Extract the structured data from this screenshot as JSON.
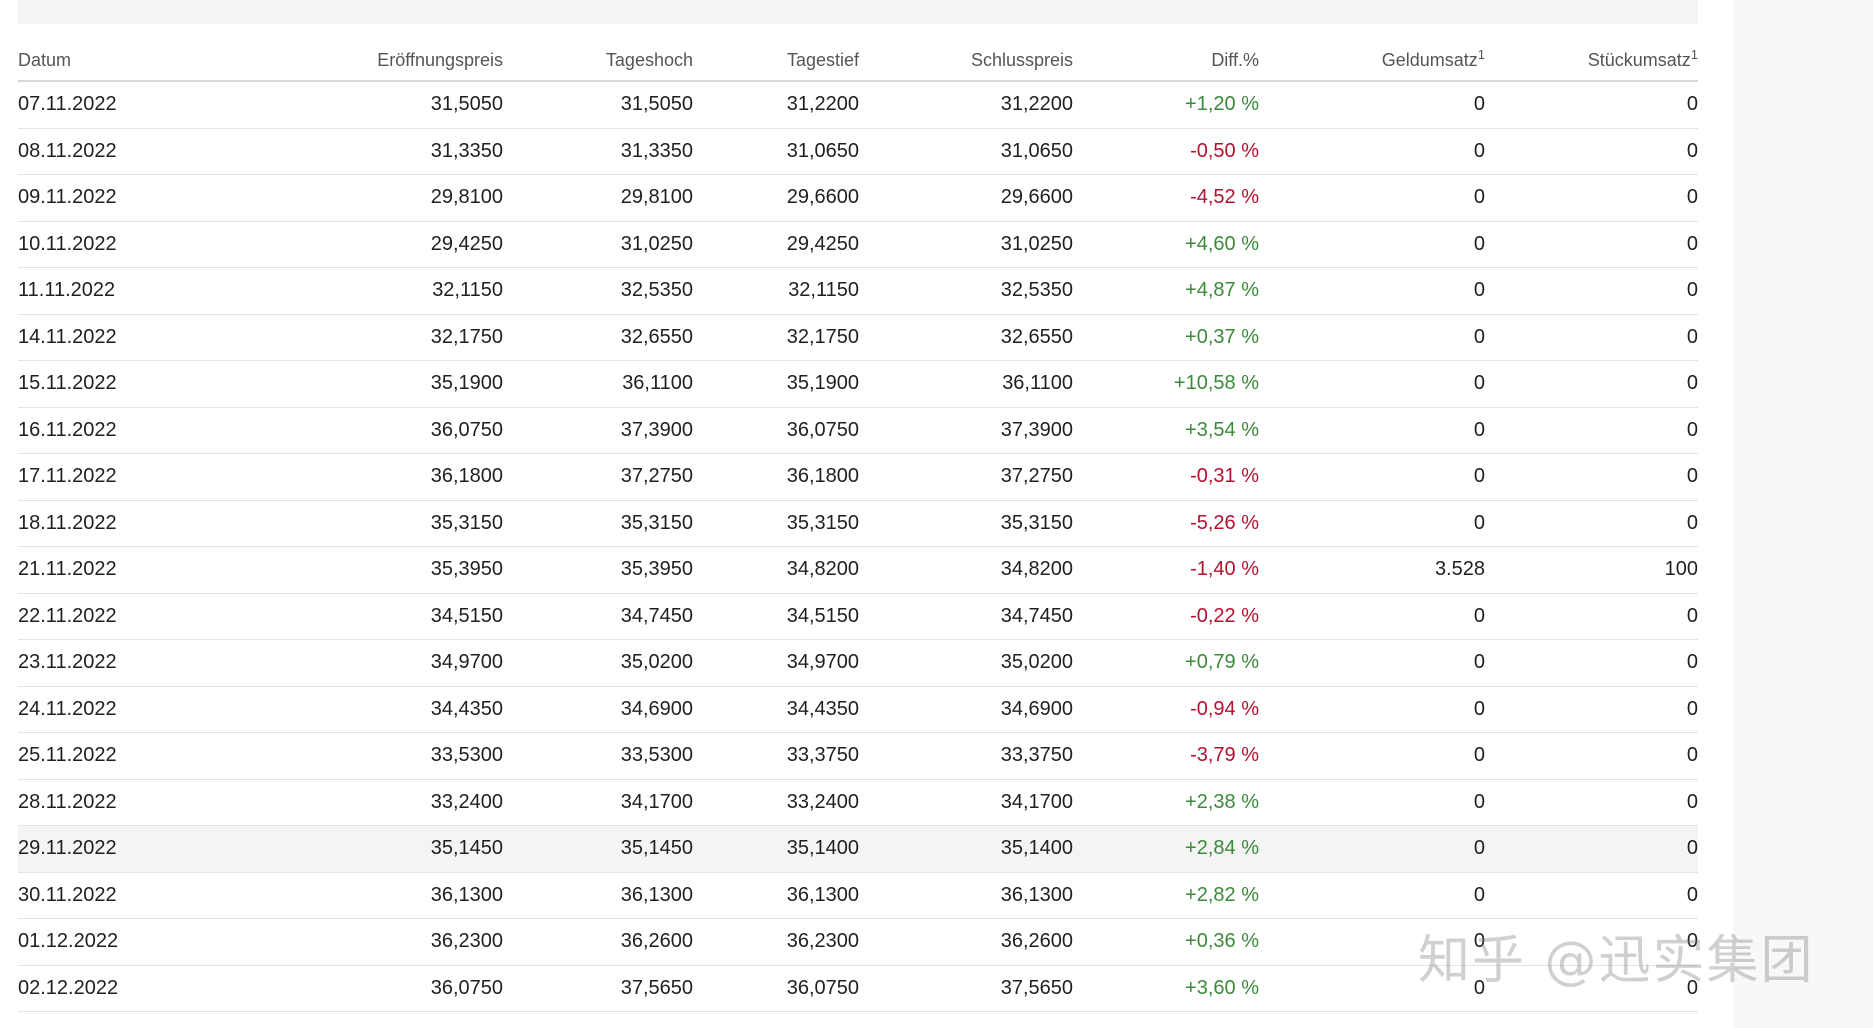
{
  "table": {
    "headers": [
      {
        "label": "Datum",
        "sup": ""
      },
      {
        "label": "Eröffnungspreis",
        "sup": ""
      },
      {
        "label": "Tageshoch",
        "sup": ""
      },
      {
        "label": "Tagestief",
        "sup": ""
      },
      {
        "label": "Schlusspreis",
        "sup": ""
      },
      {
        "label": "Diff.%",
        "sup": ""
      },
      {
        "label": "Geldumsatz",
        "sup": "1"
      },
      {
        "label": "Stückumsatz",
        "sup": "1"
      }
    ],
    "rows": [
      {
        "datum": "07.11.2022",
        "open": "31,5050",
        "high": "31,5050",
        "low": "31,2200",
        "close": "31,2200",
        "diff": "+1,20 %",
        "trend": "pos",
        "geld": "0",
        "stueck": "0"
      },
      {
        "datum": "08.11.2022",
        "open": "31,3350",
        "high": "31,3350",
        "low": "31,0650",
        "close": "31,0650",
        "diff": "-0,50 %",
        "trend": "neg",
        "geld": "0",
        "stueck": "0"
      },
      {
        "datum": "09.11.2022",
        "open": "29,8100",
        "high": "29,8100",
        "low": "29,6600",
        "close": "29,6600",
        "diff": "-4,52 %",
        "trend": "neg",
        "geld": "0",
        "stueck": "0"
      },
      {
        "datum": "10.11.2022",
        "open": "29,4250",
        "high": "31,0250",
        "low": "29,4250",
        "close": "31,0250",
        "diff": "+4,60 %",
        "trend": "pos",
        "geld": "0",
        "stueck": "0"
      },
      {
        "datum": "11.11.2022",
        "open": "32,1150",
        "high": "32,5350",
        "low": "32,1150",
        "close": "32,5350",
        "diff": "+4,87 %",
        "trend": "pos",
        "geld": "0",
        "stueck": "0"
      },
      {
        "datum": "14.11.2022",
        "open": "32,1750",
        "high": "32,6550",
        "low": "32,1750",
        "close": "32,6550",
        "diff": "+0,37 %",
        "trend": "pos",
        "geld": "0",
        "stueck": "0"
      },
      {
        "datum": "15.11.2022",
        "open": "35,1900",
        "high": "36,1100",
        "low": "35,1900",
        "close": "36,1100",
        "diff": "+10,58 %",
        "trend": "pos",
        "geld": "0",
        "stueck": "0"
      },
      {
        "datum": "16.11.2022",
        "open": "36,0750",
        "high": "37,3900",
        "low": "36,0750",
        "close": "37,3900",
        "diff": "+3,54 %",
        "trend": "pos",
        "geld": "0",
        "stueck": "0"
      },
      {
        "datum": "17.11.2022",
        "open": "36,1800",
        "high": "37,2750",
        "low": "36,1800",
        "close": "37,2750",
        "diff": "-0,31 %",
        "trend": "neg",
        "geld": "0",
        "stueck": "0"
      },
      {
        "datum": "18.11.2022",
        "open": "35,3150",
        "high": "35,3150",
        "low": "35,3150",
        "close": "35,3150",
        "diff": "-5,26 %",
        "trend": "neg",
        "geld": "0",
        "stueck": "0"
      },
      {
        "datum": "21.11.2022",
        "open": "35,3950",
        "high": "35,3950",
        "low": "34,8200",
        "close": "34,8200",
        "diff": "-1,40 %",
        "trend": "neg",
        "geld": "3.528",
        "stueck": "100"
      },
      {
        "datum": "22.11.2022",
        "open": "34,5150",
        "high": "34,7450",
        "low": "34,5150",
        "close": "34,7450",
        "diff": "-0,22 %",
        "trend": "neg",
        "geld": "0",
        "stueck": "0"
      },
      {
        "datum": "23.11.2022",
        "open": "34,9700",
        "high": "35,0200",
        "low": "34,9700",
        "close": "35,0200",
        "diff": "+0,79 %",
        "trend": "pos",
        "geld": "0",
        "stueck": "0"
      },
      {
        "datum": "24.11.2022",
        "open": "34,4350",
        "high": "34,6900",
        "low": "34,4350",
        "close": "34,6900",
        "diff": "-0,94 %",
        "trend": "neg",
        "geld": "0",
        "stueck": "0"
      },
      {
        "datum": "25.11.2022",
        "open": "33,5300",
        "high": "33,5300",
        "low": "33,3750",
        "close": "33,3750",
        "diff": "-3,79 %",
        "trend": "neg",
        "geld": "0",
        "stueck": "0"
      },
      {
        "datum": "28.11.2022",
        "open": "33,2400",
        "high": "34,1700",
        "low": "33,2400",
        "close": "34,1700",
        "diff": "+2,38 %",
        "trend": "pos",
        "geld": "0",
        "stueck": "0"
      },
      {
        "datum": "29.11.2022",
        "open": "35,1450",
        "high": "35,1450",
        "low": "35,1400",
        "close": "35,1400",
        "diff": "+2,84 %",
        "trend": "pos",
        "geld": "0",
        "stueck": "0",
        "highlight": true
      },
      {
        "datum": "30.11.2022",
        "open": "36,1300",
        "high": "36,1300",
        "low": "36,1300",
        "close": "36,1300",
        "diff": "+2,82 %",
        "trend": "pos",
        "geld": "0",
        "stueck": "0"
      },
      {
        "datum": "01.12.2022",
        "open": "36,2300",
        "high": "36,2600",
        "low": "36,2300",
        "close": "36,2600",
        "diff": "+0,36 %",
        "trend": "pos",
        "geld": "0",
        "stueck": "0"
      },
      {
        "datum": "02.12.2022",
        "open": "36,0750",
        "high": "37,5650",
        "low": "36,0750",
        "close": "37,5650",
        "diff": "+3,60 %",
        "trend": "pos",
        "geld": "0",
        "stueck": "0"
      }
    ]
  },
  "colors": {
    "positive": "#3b8a3b",
    "negative": "#b3122e"
  },
  "watermark": "知乎 @迅实集团"
}
